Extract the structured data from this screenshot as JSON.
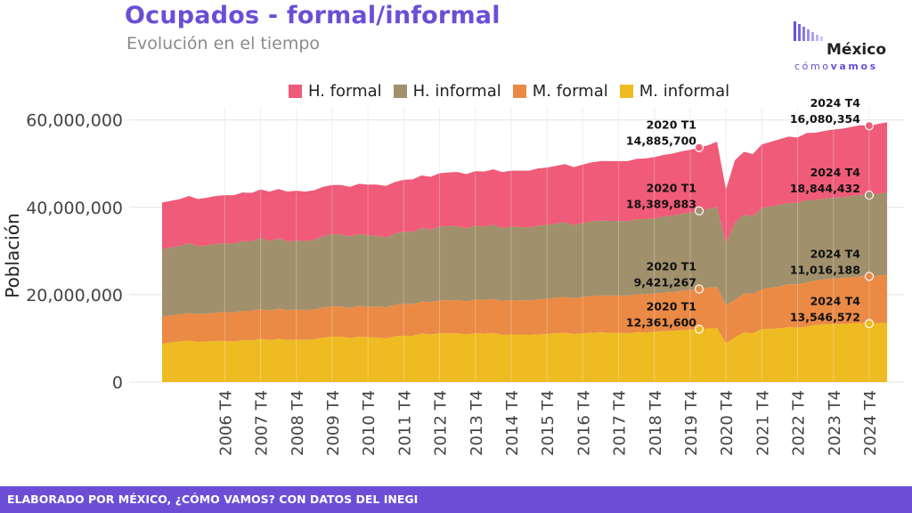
{
  "header": {
    "title": "Ocupados - formal/informal",
    "subtitle": "Evolución en el tiempo"
  },
  "logo": {
    "name": "México",
    "tag_light": "cómo",
    "tag_bold": "vamos"
  },
  "footer": {
    "text": "ELABORADO POR MÉXICO, ¿CÓMO VAMOS? CON DATOS DEL INEGI"
  },
  "colors": {
    "h_formal": "#ef5b79",
    "h_informal": "#a0906b",
    "m_formal": "#ea8a45",
    "m_informal": "#efbb22",
    "brand": "#6a4fd6"
  },
  "chart_data": {
    "type": "area",
    "stacked": true,
    "ylabel": "Población",
    "xlabel": "",
    "ylim": [
      0,
      63000000
    ],
    "yticks": [
      0,
      20000000,
      40000000,
      60000000
    ],
    "ytick_labels": [
      "0",
      "20,000,000",
      "40,000,000",
      "60,000,000"
    ],
    "xticks": [
      "2006 T4",
      "2007 T4",
      "2008 T4",
      "2009 T4",
      "2010 T4",
      "2011 T4",
      "2012 T4",
      "2013 T4",
      "2014 T4",
      "2015 T4",
      "2016 T4",
      "2017 T4",
      "2018 T4",
      "2019 T4",
      "2020 T4",
      "2021 T4",
      "2022 T4",
      "2023 T4",
      "2024 T4"
    ],
    "start": "2005 T1",
    "legend_position": "top",
    "grid": true,
    "series": [
      {
        "name": "M. informal",
        "color_key": "m_informal",
        "values": [
          8800000,
          9100000,
          9300000,
          9500000,
          9200000,
          9300000,
          9400000,
          9400000,
          9300000,
          9600000,
          9500000,
          9900000,
          9600000,
          9900000,
          9600000,
          9700000,
          9700000,
          9800000,
          10200000,
          10400000,
          10400000,
          10100000,
          10400000,
          10300000,
          10200000,
          10000000,
          10500000,
          10600000,
          10600000,
          11100000,
          10900000,
          11200000,
          11200000,
          11200000,
          10900000,
          11200000,
          11100000,
          11300000,
          10800000,
          10900000,
          10900000,
          10800000,
          10900000,
          11000000,
          11200000,
          11300000,
          11000000,
          11200000,
          11300000,
          11400000,
          11300000,
          11300000,
          11200000,
          11400000,
          11400000,
          11500000,
          11700000,
          11700000,
          11900000,
          12000000,
          12100000,
          12300000,
          12361600,
          8900000,
          10200000,
          11400000,
          11200000,
          12100000,
          12200000,
          12300000,
          12600000,
          12500000,
          12700000,
          13100000,
          13200000,
          13300000,
          13300000,
          13400000,
          13500000,
          13400000,
          13500000,
          13546572
        ]
      },
      {
        "name": "M. formal",
        "color_key": "m_formal",
        "values": [
          6200000,
          6200000,
          6200000,
          6300000,
          6400000,
          6400000,
          6500000,
          6600000,
          6700000,
          6700000,
          6800000,
          6800000,
          6800000,
          6900000,
          6900000,
          6900000,
          6800000,
          6800000,
          6900000,
          6900000,
          6900000,
          6900000,
          7000000,
          7000000,
          7100000,
          7100000,
          7200000,
          7300000,
          7300000,
          7300000,
          7400000,
          7500000,
          7500000,
          7600000,
          7600000,
          7700000,
          7700000,
          7700000,
          7800000,
          7900000,
          7800000,
          7900000,
          8000000,
          8100000,
          8100000,
          8200000,
          8200000,
          8300000,
          8400000,
          8400000,
          8500000,
          8500000,
          8600000,
          8700000,
          8700000,
          8800000,
          8800000,
          8900000,
          9000000,
          9100000,
          9200000,
          9300000,
          9421267,
          8700000,
          8700000,
          8900000,
          9000000,
          9200000,
          9400000,
          9600000,
          9800000,
          9900000,
          10100000,
          10200000,
          10300000,
          10400000,
          10500000,
          10600000,
          10700000,
          10800000,
          10900000,
          11016188
        ]
      },
      {
        "name": "H. informal",
        "color_key": "h_informal",
        "values": [
          15400000,
          15500000,
          15700000,
          16000000,
          15500000,
          15600000,
          15700000,
          15800000,
          15700000,
          16000000,
          15900000,
          16300000,
          15900000,
          16100000,
          15700000,
          15800000,
          15800000,
          16000000,
          16300000,
          16600000,
          16500000,
          16300000,
          16500000,
          16300000,
          16200000,
          16000000,
          16300000,
          16500000,
          16500000,
          16900000,
          16600000,
          16900000,
          17000000,
          16900000,
          16700000,
          16900000,
          16800000,
          17000000,
          16700000,
          16800000,
          16800000,
          16700000,
          16900000,
          16900000,
          17000000,
          17100000,
          16700000,
          16900000,
          17100000,
          17200000,
          17100000,
          17100000,
          17000000,
          17200000,
          17200000,
          17200000,
          17400000,
          17500000,
          17600000,
          17700000,
          17900000,
          18000000,
          18389883,
          14200000,
          17600000,
          18000000,
          17800000,
          18500000,
          18600000,
          18700000,
          18600000,
          18600000,
          18900000,
          18400000,
          18500000,
          18500000,
          18500000,
          18600000,
          18700000,
          18600000,
          18700000,
          18844432
        ]
      },
      {
        "name": "H. formal",
        "color_key": "h_formal",
        "values": [
          10700000,
          10700000,
          10700000,
          10800000,
          10800000,
          10900000,
          11000000,
          11000000,
          11100000,
          11100000,
          11100000,
          11100000,
          11300000,
          11300000,
          11400000,
          11400000,
          11300000,
          11300000,
          11300000,
          11200000,
          11300000,
          11400000,
          11500000,
          11600000,
          11700000,
          11800000,
          11800000,
          11900000,
          12000000,
          12000000,
          12100000,
          12200000,
          12300000,
          12400000,
          12400000,
          12500000,
          12600000,
          12700000,
          12800000,
          12800000,
          12900000,
          13000000,
          13100000,
          13100000,
          13200000,
          13300000,
          13300000,
          13400000,
          13500000,
          13600000,
          13700000,
          13700000,
          13800000,
          13800000,
          13900000,
          14000000,
          14100000,
          14200000,
          14300000,
          14400000,
          14500000,
          14600000,
          14885700,
          12300000,
          14300000,
          14400000,
          14200000,
          14600000,
          14800000,
          15000000,
          15200000,
          15000000,
          15300000,
          15400000,
          15500000,
          15600000,
          15700000,
          15800000,
          15900000,
          15900000,
          16000000,
          16080354
        ]
      }
    ],
    "annotations": [
      {
        "series": "H. formal",
        "period": "2020 T1",
        "label": "14,885,700",
        "side": "left"
      },
      {
        "series": "H. informal",
        "period": "2020 T1",
        "label": "18,389,883",
        "side": "left"
      },
      {
        "series": "M. formal",
        "period": "2020 T1",
        "label": "9,421,267",
        "side": "left"
      },
      {
        "series": "M. informal",
        "period": "2020 T1",
        "label": "12,361,600",
        "side": "left"
      },
      {
        "series": "H. formal",
        "period": "2024 T4",
        "label": "16,080,354",
        "side": "right"
      },
      {
        "series": "H. informal",
        "period": "2024 T4",
        "label": "18,844,432",
        "side": "right"
      },
      {
        "series": "M. formal",
        "period": "2024 T4",
        "label": "11,016,188",
        "side": "right"
      },
      {
        "series": "M. informal",
        "period": "2024 T4",
        "label": "13,546,572",
        "side": "right"
      }
    ]
  }
}
